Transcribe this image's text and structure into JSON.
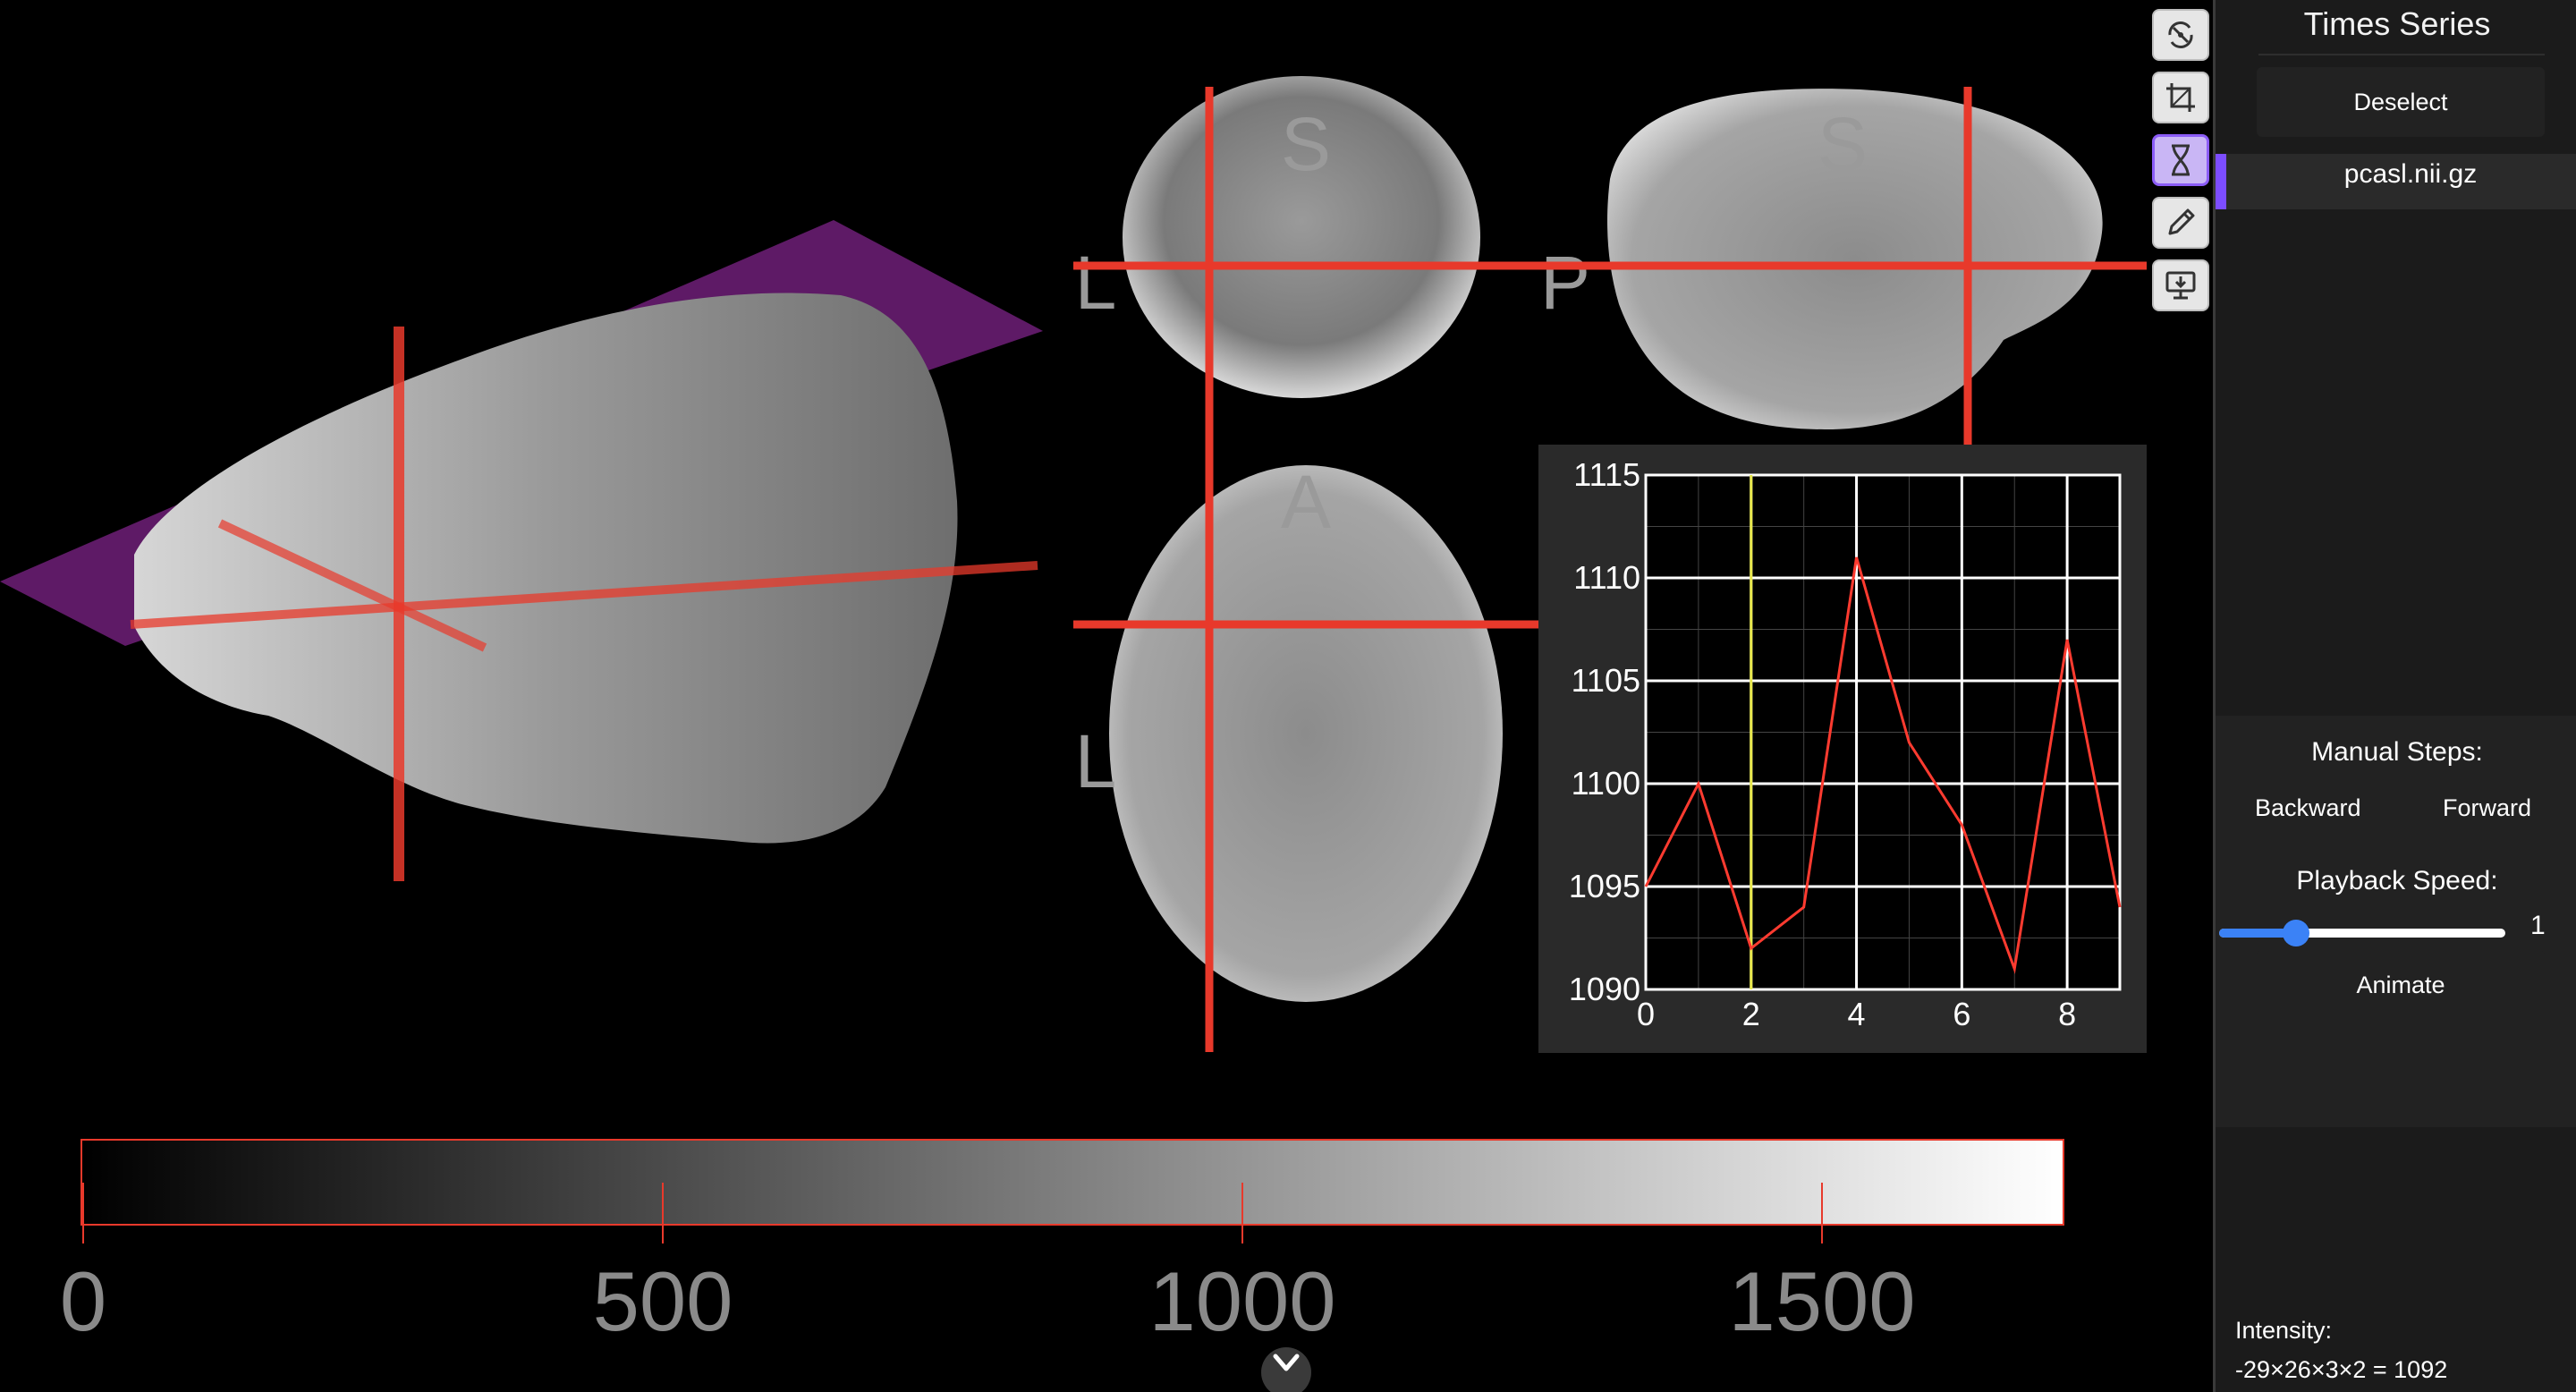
{
  "orientation_labels": {
    "coronal_top": "S",
    "coronal_left": "L",
    "sagittal_top": "S",
    "sagittal_left": "P",
    "axial_top": "A",
    "axial_left": "L"
  },
  "colorbar": {
    "ticks": [
      "0",
      "500",
      "1000",
      "1500"
    ]
  },
  "timeseries_plot": {
    "x_tick_labels": [
      "0",
      "2",
      "4",
      "6",
      "8"
    ],
    "y_tick_labels": [
      "1115",
      "1110",
      "1105",
      "1100",
      "1095",
      "1090"
    ]
  },
  "chart_data": {
    "type": "line",
    "title": "",
    "xlabel": "",
    "ylabel": "",
    "x": [
      0,
      1,
      2,
      3,
      4,
      5,
      6,
      7,
      8,
      9
    ],
    "series": [
      {
        "values": [
          1095,
          1100,
          1092,
          1094,
          1111,
          1102,
          1098,
          1091,
          1107,
          1094
        ]
      }
    ],
    "xlim": [
      0,
      9
    ],
    "ylim": [
      1090,
      1115
    ],
    "current_frame": 2,
    "grid": true,
    "line_color": "#ff3b30",
    "cursor_color": "#e8e84a",
    "background": "#000000"
  },
  "toolbar": {
    "tools": [
      {
        "icon": "crosshair-rotate-icon",
        "active": false
      },
      {
        "icon": "crop-icon",
        "active": false
      },
      {
        "icon": "hourglass-icon",
        "active": true
      },
      {
        "icon": "pencil-icon",
        "active": false
      },
      {
        "icon": "monitor-download-icon",
        "active": false
      }
    ]
  },
  "panel": {
    "title": "Times Series",
    "deselect_label": "Deselect",
    "file_name": "pcasl.nii.gz",
    "manual_steps_label": "Manual Steps:",
    "backward_label": "Backward",
    "forward_label": "Forward",
    "playback_speed_label": "Playback Speed:",
    "playback_speed_value": "1",
    "playback_speed_fraction": 0.27,
    "animate_label": "Animate",
    "intensity_label": "Intensity:",
    "intensity_value": "-29×26×3×2 = 1092"
  },
  "colors": {
    "crosshair": "#e8392b",
    "plane": "#5e1a66",
    "accent": "#8b5cf6",
    "slider": "#3b82f6"
  }
}
